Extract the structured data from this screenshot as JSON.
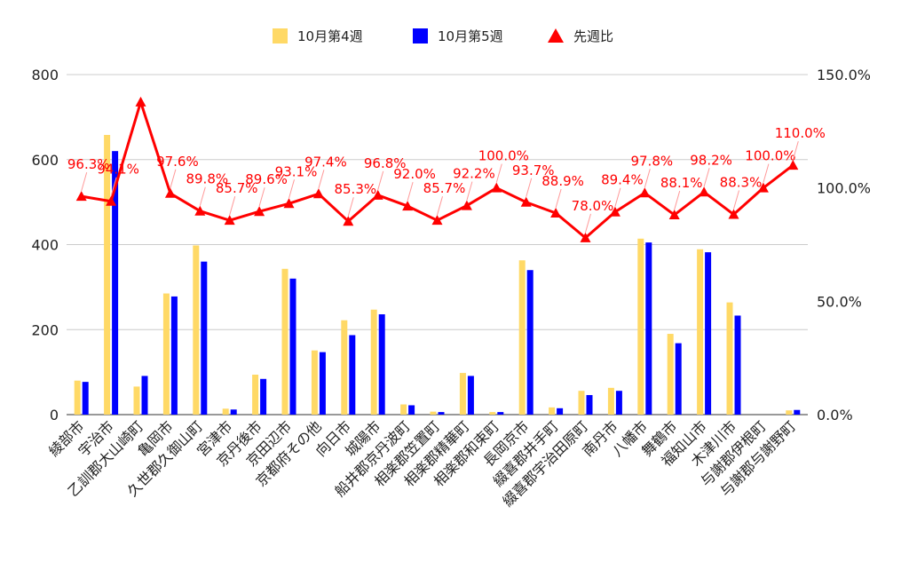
{
  "chart_data": {
    "type": "bar",
    "title": "",
    "xlabel": "",
    "ylabel": "",
    "y2label": "",
    "ylim": [
      0,
      800
    ],
    "y2lim": [
      0,
      150
    ],
    "yticks": [
      "0",
      "200",
      "400",
      "600",
      "800"
    ],
    "y2ticks": [
      "0.0%",
      "50.0%",
      "100.0%",
      "150.0%"
    ],
    "grid": true,
    "legend_position": "top-center",
    "categories": [
      "綾部市",
      "宇治市",
      "乙訓郡大山崎町",
      "亀岡市",
      "久世郡久御山町",
      "宮津市",
      "京丹後市",
      "京田辺市",
      "京都府その他",
      "向日市",
      "城陽市",
      "船井郡京丹波町",
      "相楽郡笠置町",
      "相楽郡精華町",
      "相楽郡和束町",
      "長岡京市",
      "綴喜郡井手町",
      "綴喜郡宇治田原町",
      "南丹市",
      "八幡市",
      "舞鶴市",
      "福知山市",
      "木津川市",
      "与謝郡伊根町",
      "与謝郡与謝野町"
    ],
    "series": [
      {
        "name": "10月第4週",
        "type": "bar",
        "axis": "left",
        "color": "#ffd966",
        "values": [
          80,
          658,
          66,
          285,
          398,
          14,
          94,
          343,
          151,
          222,
          247,
          24,
          7,
          98,
          6,
          363,
          17,
          56,
          63,
          414,
          190,
          389,
          264,
          0,
          10
        ]
      },
      {
        "name": "10月第5週",
        "type": "bar",
        "axis": "left",
        "color": "#0000ff",
        "values": [
          77,
          620,
          91,
          278,
          360,
          12,
          84,
          320,
          147,
          187,
          236,
          22,
          6,
          91,
          6,
          340,
          15,
          46,
          56,
          405,
          168,
          382,
          233,
          0,
          11
        ]
      },
      {
        "name": "先週比",
        "type": "line",
        "axis": "right",
        "color": "#ff0000",
        "values": [
          96.3,
          94.1,
          137.9,
          97.6,
          89.8,
          85.7,
          89.6,
          93.1,
          97.4,
          85.3,
          96.8,
          92.0,
          85.7,
          92.2,
          100.0,
          93.7,
          88.9,
          78.0,
          89.4,
          97.8,
          88.1,
          98.2,
          88.3,
          100.0,
          110.0
        ],
        "labels": [
          "96.3%",
          "94.1%",
          "",
          "97.6%",
          "89.8%",
          "85.7%",
          "89.6%",
          "93.1%",
          "97.4%",
          "85.3%",
          "96.8%",
          "92.0%",
          "85.7%",
          "92.2%",
          "100.0%",
          "93.7%",
          "88.9%",
          "78.0%",
          "89.4%",
          "97.8%",
          "88.1%",
          "98.2%",
          "88.3%",
          "100.0%",
          "110.0%"
        ]
      }
    ]
  }
}
